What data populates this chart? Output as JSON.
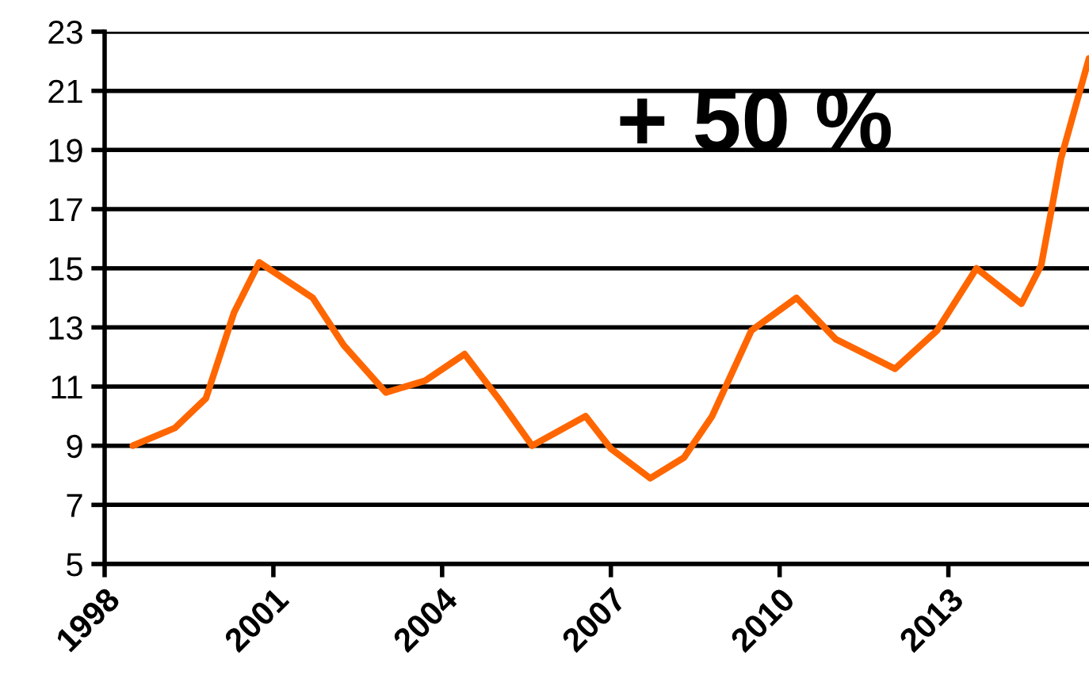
{
  "chart_data": {
    "type": "line",
    "x": [
      1998.5,
      1999.25,
      1999.8,
      2000.3,
      2000.75,
      2001.7,
      2002.25,
      2003.0,
      2003.7,
      2004.4,
      2005.0,
      2005.6,
      2006.55,
      2007.0,
      2007.7,
      2008.3,
      2008.8,
      2009.5,
      2010.3,
      2011.0,
      2012.05,
      2012.8,
      2013.5,
      2014.3,
      2014.65,
      2015.0,
      2015.5
    ],
    "series": [
      {
        "color": "#ff6600",
        "values": [
          9.0,
          9.6,
          10.6,
          13.5,
          15.2,
          14.0,
          12.4,
          10.8,
          11.2,
          12.1,
          10.6,
          9.0,
          10.0,
          8.9,
          7.9,
          8.6,
          10.0,
          12.9,
          14.0,
          12.6,
          11.6,
          12.9,
          15.0,
          13.8,
          15.1,
          18.7,
          22.1
        ]
      }
    ],
    "xlim": [
      1998,
      2015.5
    ],
    "xticks": [
      1998,
      2001,
      2004,
      2007,
      2010,
      2013
    ],
    "ylim": [
      5,
      23
    ],
    "yticks": [
      5,
      7,
      9,
      11,
      13,
      15,
      17,
      19,
      21,
      23
    ],
    "grid": "y",
    "marker": "none",
    "line_style": "solid",
    "annotations": [
      "+ 50 %"
    ]
  }
}
